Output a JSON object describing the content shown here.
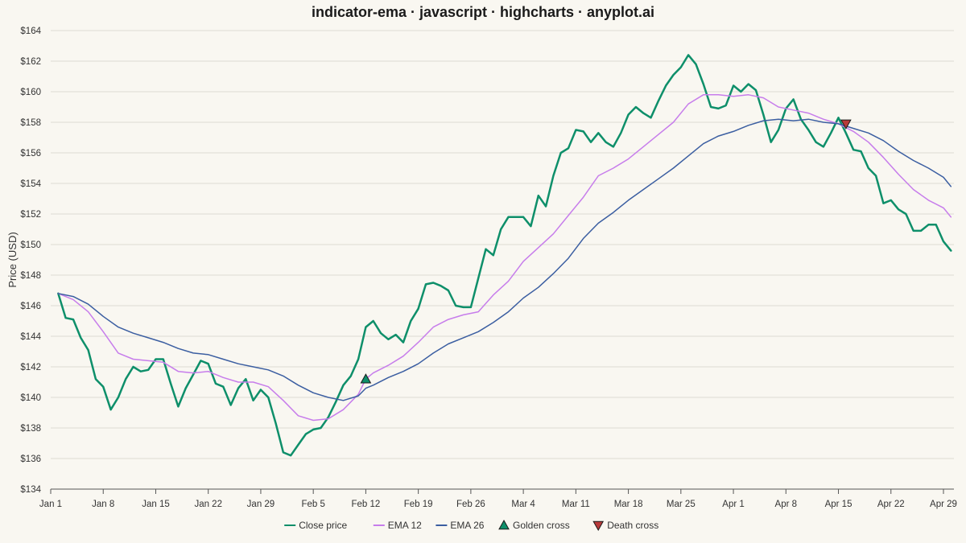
{
  "chart_data": {
    "type": "line",
    "title": "indicator-ema · javascript · highcharts · anyplot.ai",
    "ylabel": "Price (USD)",
    "y_tick_prefix": "$",
    "ylim": [
      134,
      164
    ],
    "y_ticks": [
      134,
      136,
      138,
      140,
      142,
      144,
      146,
      148,
      150,
      152,
      154,
      156,
      158,
      160,
      162,
      164
    ],
    "x_day_range": [
      0,
      119
    ],
    "x_ticks": [
      {
        "day": 0,
        "label": "Jan 1"
      },
      {
        "day": 7,
        "label": "Jan 8"
      },
      {
        "day": 14,
        "label": "Jan 15"
      },
      {
        "day": 21,
        "label": "Jan 22"
      },
      {
        "day": 28,
        "label": "Jan 29"
      },
      {
        "day": 35,
        "label": "Feb 5"
      },
      {
        "day": 42,
        "label": "Feb 12"
      },
      {
        "day": 49,
        "label": "Feb 19"
      },
      {
        "day": 56,
        "label": "Feb 26"
      },
      {
        "day": 63,
        "label": "Mar 4"
      },
      {
        "day": 70,
        "label": "Mar 11"
      },
      {
        "day": 77,
        "label": "Mar 18"
      },
      {
        "day": 84,
        "label": "Mar 25"
      },
      {
        "day": 91,
        "label": "Apr 1"
      },
      {
        "day": 98,
        "label": "Apr 8"
      },
      {
        "day": 105,
        "label": "Apr 15"
      },
      {
        "day": 112,
        "label": "Apr 22"
      },
      {
        "day": 119,
        "label": "Apr 29"
      }
    ],
    "grid": true,
    "legend_position": "bottom-center",
    "series": [
      {
        "name": "Close price",
        "color": "#0E8F6A",
        "width": 2.5,
        "points": [
          [
            1,
            146.8
          ],
          [
            2,
            145.2
          ],
          [
            3,
            145.1
          ],
          [
            4,
            143.9
          ],
          [
            5,
            143.1
          ],
          [
            6,
            141.2
          ],
          [
            7,
            140.7
          ],
          [
            8,
            139.2
          ],
          [
            9,
            140.0
          ],
          [
            10,
            141.2
          ],
          [
            11,
            142.0
          ],
          [
            12,
            141.7
          ],
          [
            13,
            141.8
          ],
          [
            14,
            142.5
          ],
          [
            15,
            142.5
          ],
          [
            16,
            140.9
          ],
          [
            17,
            139.4
          ],
          [
            18,
            140.6
          ],
          [
            19,
            141.5
          ],
          [
            20,
            142.4
          ],
          [
            21,
            142.2
          ],
          [
            22,
            140.9
          ],
          [
            23,
            140.7
          ],
          [
            24,
            139.5
          ],
          [
            25,
            140.6
          ],
          [
            26,
            141.2
          ],
          [
            27,
            139.8
          ],
          [
            28,
            140.5
          ],
          [
            29,
            140.0
          ],
          [
            30,
            138.3
          ],
          [
            31,
            136.4
          ],
          [
            32,
            136.2
          ],
          [
            33,
            136.9
          ],
          [
            34,
            137.6
          ],
          [
            35,
            137.9
          ],
          [
            36,
            138.0
          ],
          [
            37,
            138.7
          ],
          [
            38,
            139.7
          ],
          [
            39,
            140.8
          ],
          [
            40,
            141.4
          ],
          [
            41,
            142.5
          ],
          [
            42,
            144.6
          ],
          [
            43,
            145.0
          ],
          [
            44,
            144.2
          ],
          [
            45,
            143.8
          ],
          [
            46,
            144.1
          ],
          [
            47,
            143.6
          ],
          [
            48,
            145.0
          ],
          [
            49,
            145.8
          ],
          [
            50,
            147.4
          ],
          [
            51,
            147.5
          ],
          [
            52,
            147.3
          ],
          [
            53,
            147.0
          ],
          [
            54,
            146.0
          ],
          [
            55,
            145.9
          ],
          [
            56,
            145.9
          ],
          [
            57,
            147.8
          ],
          [
            58,
            149.7
          ],
          [
            59,
            149.3
          ],
          [
            60,
            151.0
          ],
          [
            61,
            151.8
          ],
          [
            62,
            151.8
          ],
          [
            63,
            151.8
          ],
          [
            64,
            151.2
          ],
          [
            65,
            153.2
          ],
          [
            66,
            152.5
          ],
          [
            67,
            154.5
          ],
          [
            68,
            156.0
          ],
          [
            69,
            156.3
          ],
          [
            70,
            157.5
          ],
          [
            71,
            157.4
          ],
          [
            72,
            156.7
          ],
          [
            73,
            157.3
          ],
          [
            74,
            156.7
          ],
          [
            75,
            156.4
          ],
          [
            76,
            157.3
          ],
          [
            77,
            158.5
          ],
          [
            78,
            159.0
          ],
          [
            79,
            158.6
          ],
          [
            80,
            158.3
          ],
          [
            81,
            159.4
          ],
          [
            82,
            160.4
          ],
          [
            83,
            161.1
          ],
          [
            84,
            161.6
          ],
          [
            85,
            162.4
          ],
          [
            86,
            161.8
          ],
          [
            87,
            160.5
          ],
          [
            88,
            159.0
          ],
          [
            89,
            158.9
          ],
          [
            90,
            159.1
          ],
          [
            91,
            160.4
          ],
          [
            92,
            160.0
          ],
          [
            93,
            160.5
          ],
          [
            94,
            160.1
          ],
          [
            95,
            158.5
          ],
          [
            96,
            156.7
          ],
          [
            97,
            157.5
          ],
          [
            98,
            158.9
          ],
          [
            99,
            159.5
          ],
          [
            100,
            158.2
          ],
          [
            101,
            157.5
          ],
          [
            102,
            156.7
          ],
          [
            103,
            156.4
          ],
          [
            104,
            157.3
          ],
          [
            105,
            158.3
          ],
          [
            106,
            157.3
          ],
          [
            107,
            156.2
          ],
          [
            108,
            156.1
          ],
          [
            109,
            155.0
          ],
          [
            110,
            154.5
          ],
          [
            111,
            152.7
          ],
          [
            112,
            152.9
          ],
          [
            113,
            152.3
          ],
          [
            114,
            152.0
          ],
          [
            115,
            150.9
          ],
          [
            116,
            150.9
          ],
          [
            117,
            151.3
          ],
          [
            118,
            151.3
          ],
          [
            119,
            150.2
          ],
          [
            120,
            149.6
          ]
        ]
      },
      {
        "name": "EMA 12",
        "color": "#C77DEB",
        "width": 1.5,
        "points": [
          [
            1,
            146.8
          ],
          [
            3,
            146.4
          ],
          [
            5,
            145.6
          ],
          [
            7,
            144.3
          ],
          [
            9,
            142.9
          ],
          [
            11,
            142.5
          ],
          [
            13,
            142.4
          ],
          [
            15,
            142.3
          ],
          [
            17,
            141.7
          ],
          [
            19,
            141.6
          ],
          [
            21,
            141.7
          ],
          [
            23,
            141.3
          ],
          [
            25,
            141.0
          ],
          [
            27,
            141.0
          ],
          [
            29,
            140.7
          ],
          [
            31,
            139.8
          ],
          [
            33,
            138.8
          ],
          [
            35,
            138.5
          ],
          [
            37,
            138.6
          ],
          [
            39,
            139.2
          ],
          [
            41,
            140.2
          ],
          [
            42,
            141.2
          ],
          [
            43,
            141.6
          ],
          [
            45,
            142.1
          ],
          [
            47,
            142.7
          ],
          [
            49,
            143.6
          ],
          [
            51,
            144.6
          ],
          [
            53,
            145.1
          ],
          [
            55,
            145.4
          ],
          [
            57,
            145.6
          ],
          [
            59,
            146.7
          ],
          [
            61,
            147.6
          ],
          [
            63,
            148.9
          ],
          [
            65,
            149.8
          ],
          [
            67,
            150.7
          ],
          [
            69,
            151.9
          ],
          [
            71,
            153.1
          ],
          [
            73,
            154.5
          ],
          [
            75,
            155.0
          ],
          [
            77,
            155.6
          ],
          [
            79,
            156.4
          ],
          [
            81,
            157.2
          ],
          [
            83,
            158.0
          ],
          [
            85,
            159.2
          ],
          [
            87,
            159.8
          ],
          [
            89,
            159.8
          ],
          [
            91,
            159.7
          ],
          [
            93,
            159.8
          ],
          [
            95,
            159.6
          ],
          [
            97,
            159.0
          ],
          [
            99,
            158.8
          ],
          [
            101,
            158.6
          ],
          [
            103,
            158.2
          ],
          [
            105,
            157.9
          ],
          [
            107,
            157.4
          ],
          [
            109,
            156.7
          ],
          [
            111,
            155.7
          ],
          [
            113,
            154.6
          ],
          [
            115,
            153.6
          ],
          [
            117,
            152.9
          ],
          [
            119,
            152.4
          ],
          [
            120,
            151.8
          ]
        ]
      },
      {
        "name": "EMA 26",
        "color": "#3B5EA1",
        "width": 1.5,
        "points": [
          [
            1,
            146.8
          ],
          [
            3,
            146.6
          ],
          [
            5,
            146.1
          ],
          [
            7,
            145.3
          ],
          [
            9,
            144.6
          ],
          [
            11,
            144.2
          ],
          [
            13,
            143.9
          ],
          [
            15,
            143.6
          ],
          [
            17,
            143.2
          ],
          [
            19,
            142.9
          ],
          [
            21,
            142.8
          ],
          [
            23,
            142.5
          ],
          [
            25,
            142.2
          ],
          [
            27,
            142.0
          ],
          [
            29,
            141.8
          ],
          [
            31,
            141.4
          ],
          [
            33,
            140.8
          ],
          [
            35,
            140.3
          ],
          [
            37,
            140.0
          ],
          [
            39,
            139.8
          ],
          [
            41,
            140.1
          ],
          [
            42,
            140.6
          ],
          [
            43,
            140.8
          ],
          [
            45,
            141.3
          ],
          [
            47,
            141.7
          ],
          [
            49,
            142.2
          ],
          [
            51,
            142.9
          ],
          [
            53,
            143.5
          ],
          [
            55,
            143.9
          ],
          [
            57,
            144.3
          ],
          [
            59,
            144.9
          ],
          [
            61,
            145.6
          ],
          [
            63,
            146.5
          ],
          [
            65,
            147.2
          ],
          [
            67,
            148.1
          ],
          [
            69,
            149.1
          ],
          [
            71,
            150.4
          ],
          [
            73,
            151.4
          ],
          [
            75,
            152.1
          ],
          [
            77,
            152.9
          ],
          [
            79,
            153.6
          ],
          [
            81,
            154.3
          ],
          [
            83,
            155.0
          ],
          [
            85,
            155.8
          ],
          [
            87,
            156.6
          ],
          [
            89,
            157.1
          ],
          [
            91,
            157.4
          ],
          [
            93,
            157.8
          ],
          [
            95,
            158.1
          ],
          [
            97,
            158.2
          ],
          [
            99,
            158.1
          ],
          [
            101,
            158.2
          ],
          [
            103,
            158.0
          ],
          [
            105,
            157.9
          ],
          [
            107,
            157.6
          ],
          [
            109,
            157.3
          ],
          [
            111,
            156.8
          ],
          [
            113,
            156.1
          ],
          [
            115,
            155.5
          ],
          [
            117,
            155.0
          ],
          [
            119,
            154.4
          ],
          [
            120,
            153.8
          ]
        ]
      }
    ],
    "markers": [
      {
        "name": "Golden cross",
        "x": 42,
        "y": 141.2,
        "symbol": "triangle-up",
        "color": "#0E8F6A"
      },
      {
        "name": "Death cross",
        "x": 106,
        "y": 157.9,
        "symbol": "triangle-down",
        "color": "#B83A3A"
      }
    ],
    "legend": [
      {
        "label": "Close price",
        "symbol": "line",
        "color": "#0E8F6A"
      },
      {
        "label": "EMA 12",
        "symbol": "line",
        "color": "#C77DEB"
      },
      {
        "label": "EMA 26",
        "symbol": "line",
        "color": "#3B5EA1"
      },
      {
        "label": "Golden cross",
        "symbol": "triangle-up",
        "color": "#0E8F6A"
      },
      {
        "label": "Death cross",
        "symbol": "triangle-down",
        "color": "#B83A3A"
      }
    ]
  }
}
